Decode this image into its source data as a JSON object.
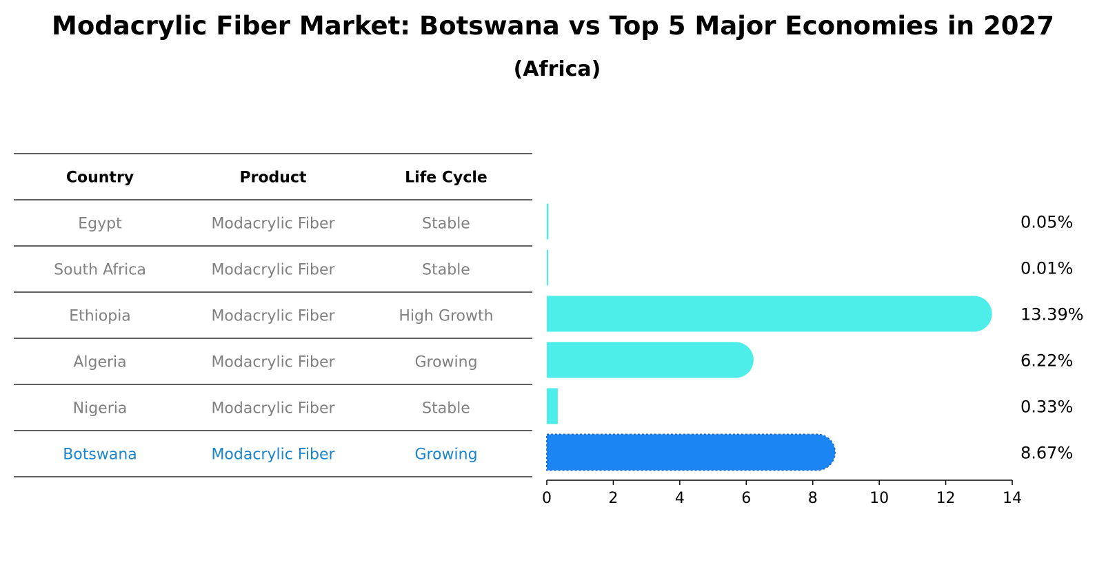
{
  "title": "Modacrylic Fiber Market: Botswana vs Top 5 Major Economies in 2027",
  "subtitle": "(Africa)",
  "colors": {
    "bar": "#4DEEEA",
    "highlight_bar": "#1A85F3",
    "highlight_text": "#1A85CC",
    "muted_text": "#808080",
    "rule": "#000000"
  },
  "table": {
    "columns": [
      "Country",
      "Product",
      "Life Cycle"
    ],
    "rows": [
      {
        "country": "Egypt",
        "product": "Modacrylic Fiber",
        "life_cycle": "Stable",
        "highlight": false
      },
      {
        "country": "South Africa",
        "product": "Modacrylic Fiber",
        "life_cycle": "Stable",
        "highlight": false
      },
      {
        "country": "Ethiopia",
        "product": "Modacrylic Fiber",
        "life_cycle": "High Growth",
        "highlight": false
      },
      {
        "country": "Algeria",
        "product": "Modacrylic Fiber",
        "life_cycle": "Growing",
        "highlight": false
      },
      {
        "country": "Nigeria",
        "product": "Modacrylic Fiber",
        "life_cycle": "Stable",
        "highlight": false
      },
      {
        "country": "Botswana",
        "product": "Modacrylic Fiber",
        "life_cycle": "Growing",
        "highlight": true
      }
    ]
  },
  "chart_data": {
    "type": "bar",
    "orientation": "horizontal",
    "title": "Modacrylic Fiber Market: Botswana vs Top 5 Major Economies in 2027",
    "subtitle": "(Africa)",
    "categories": [
      "Egypt",
      "South Africa",
      "Ethiopia",
      "Algeria",
      "Nigeria",
      "Botswana"
    ],
    "values": [
      0.05,
      0.01,
      13.39,
      6.22,
      0.33,
      8.67
    ],
    "value_labels": [
      "0.05%",
      "0.01%",
      "13.39%",
      "6.22%",
      "0.33%",
      "8.67%"
    ],
    "highlight_category": "Botswana",
    "xlabel": "",
    "ylabel": "",
    "xlim": [
      0,
      14
    ],
    "xticks": [
      0,
      2,
      4,
      6,
      8,
      10,
      12,
      14
    ],
    "grid": false,
    "legend": "none"
  }
}
